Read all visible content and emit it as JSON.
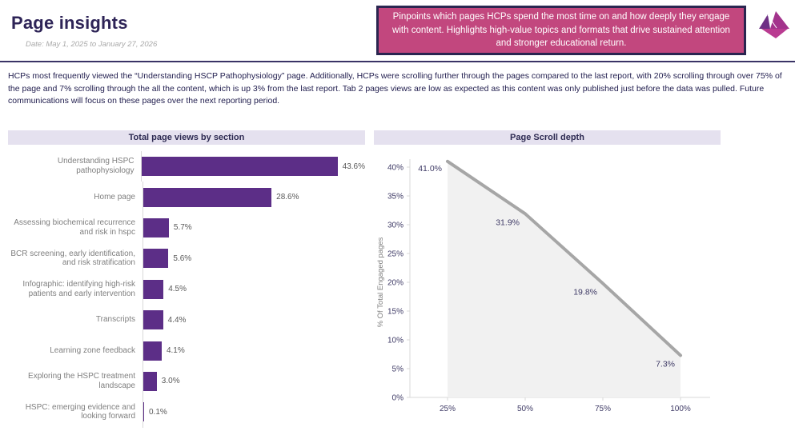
{
  "header": {
    "title": "Page insights",
    "date": "Date: May 1, 2025 to January 27, 2026",
    "callout": "Pinpoints which pages HCPs spend the most time on and how deeply they engage with content. Highlights high-value topics and formats that drive sustained attention and stronger educational return.",
    "logo_icon": "paper-boat-logo"
  },
  "summary": "HCPs most frequently viewed the “Understanding HSCP Pathophysiology” page. Additionally, HCPs were scrolling further through the pages compared to the last report, with 20% scrolling through over 75% of the page and 7% scrolling through the all the content, which is up 3% from the last report. Tab 2 pages views are low as expected as this content was only published just before the data was pulled. Future communications will focus on these pages over the next reporting period.",
  "colors": {
    "accent_purple": "#5c2e87",
    "callout_pink": "#c2477e",
    "callout_border": "#2a2550",
    "panel_header_bg": "#e5e1ef",
    "divider": "#3a3366",
    "line_gray": "#a6a6a6",
    "area_gray": "#f1f1f1",
    "tick_text": "#3f3b66"
  },
  "chart_data": [
    {
      "type": "bar",
      "orientation": "horizontal",
      "title": "Total page views by section",
      "categories": [
        "Understanding HSPC pathophysiology",
        "Home page",
        "Assessing biochemical recurrence and risk in hspc",
        "BCR screening, early identification, and risk stratification",
        "Infographic: identifying high-risk patients and early intervention",
        "Transcripts",
        "Learning zone feedback",
        "Exploring the HSPC treatment landscape",
        "HSPC: emerging evidence and looking forward"
      ],
      "values": [
        43.6,
        28.6,
        5.7,
        5.6,
        4.5,
        4.4,
        4.1,
        3.0,
        0.1
      ],
      "value_labels": [
        "43.6%",
        "28.6%",
        "5.7%",
        "5.6%",
        "4.5%",
        "4.4%",
        "4.1%",
        "3.0%",
        "0.1%"
      ],
      "xlim": [
        0,
        45
      ],
      "bar_color": "#5c2e87",
      "grid": false,
      "legend": "none"
    },
    {
      "type": "area",
      "title": "Page Scroll depth",
      "x": [
        25,
        50,
        75,
        100
      ],
      "x_labels": [
        "25%",
        "50%",
        "75%",
        "100%"
      ],
      "values": [
        41.0,
        31.9,
        19.8,
        7.3
      ],
      "point_labels": [
        "41.0%",
        "31.9%",
        "19.8%",
        "7.3%"
      ],
      "xlabel": "",
      "ylabel": "% Of Total Engaged pages",
      "yticks": [
        0,
        5,
        10,
        15,
        20,
        25,
        30,
        35,
        40
      ],
      "ytick_labels": [
        "0%",
        "5%",
        "10%",
        "15%",
        "20%",
        "25%",
        "30%",
        "35%",
        "40%"
      ],
      "ylim": [
        0,
        42
      ],
      "line_color": "#a6a6a6",
      "fill_color": "#f1f1f1",
      "grid": false,
      "legend": "none"
    }
  ]
}
